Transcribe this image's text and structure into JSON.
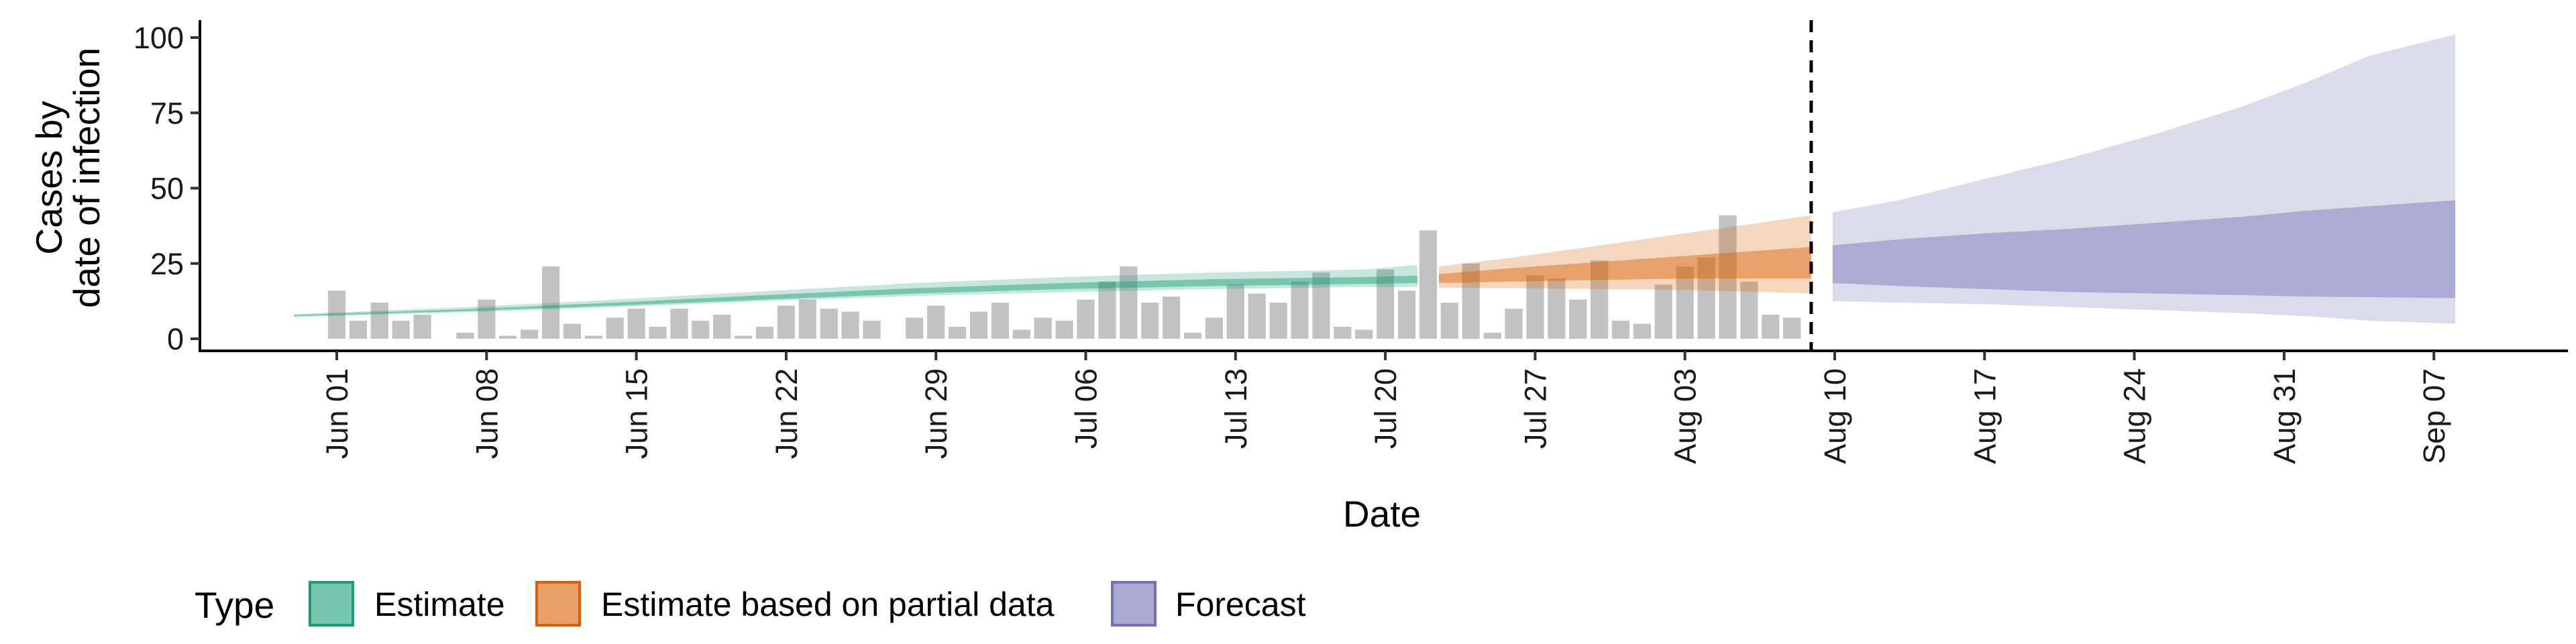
{
  "chart_data": {
    "type": "area",
    "xlabel": "Date",
    "ylabel_lines": [
      "Cases by",
      "date of infection"
    ],
    "ylim": [
      0,
      105
    ],
    "yticks": [
      0,
      25,
      50,
      75,
      100
    ],
    "x_start_day": 0,
    "x_end_day": 104,
    "x_ticks": [
      {
        "day": 1,
        "label": "Jun 01"
      },
      {
        "day": 8,
        "label": "Jun 08"
      },
      {
        "day": 15,
        "label": "Jun 15"
      },
      {
        "day": 22,
        "label": "Jun 22"
      },
      {
        "day": 29,
        "label": "Jun 29"
      },
      {
        "day": 36,
        "label": "Jul 06"
      },
      {
        "day": 43,
        "label": "Jul 13"
      },
      {
        "day": 50,
        "label": "Jul 20"
      },
      {
        "day": 57,
        "label": "Jul 27"
      },
      {
        "day": 64,
        "label": "Aug 03"
      },
      {
        "day": 71,
        "label": "Aug 10"
      },
      {
        "day": 78,
        "label": "Aug 17"
      },
      {
        "day": 85,
        "label": "Aug 24"
      },
      {
        "day": 92,
        "label": "Aug 31"
      },
      {
        "day": 99,
        "label": "Sep 07"
      }
    ],
    "forecast_start_day": 69.9,
    "reported_cases": {
      "start_day": 1,
      "values": [
        16,
        6,
        12,
        6,
        8,
        0,
        2,
        13,
        1,
        3,
        24,
        5,
        1,
        7,
        10,
        4,
        10,
        6,
        8,
        1,
        4,
        11,
        13,
        10,
        9,
        6,
        0,
        7,
        11,
        4,
        9,
        12,
        3,
        7,
        6,
        13,
        19,
        24,
        12,
        14,
        2,
        7,
        18,
        15,
        12,
        19,
        22,
        4,
        3,
        23,
        16,
        36,
        12,
        25,
        2,
        10,
        21,
        20,
        13,
        26,
        6,
        5,
        18,
        24,
        27,
        41,
        19,
        8,
        7
      ]
    },
    "series": [
      {
        "name": "Estimate",
        "color": "#1b9e77",
        "days": [
          -1,
          7,
          14,
          21,
          28,
          35,
          42,
          49,
          51.5
        ],
        "outer_lo": [
          7.2,
          8.8,
          10.5,
          12.5,
          14.2,
          15.5,
          16.5,
          17.2,
          17.2
        ],
        "outer_hi": [
          8.2,
          10.5,
          13.0,
          15.8,
          18.5,
          20.5,
          22.0,
          23.0,
          24.5
        ],
        "inner_lo": [
          7.5,
          9.2,
          11.0,
          13.0,
          15.0,
          16.5,
          17.5,
          18.2,
          18.5
        ],
        "inner_hi": [
          7.9,
          9.8,
          12.0,
          14.5,
          16.8,
          18.5,
          19.8,
          20.5,
          21.0
        ]
      },
      {
        "name": "Estimate based on partial data",
        "color": "#d95f02",
        "days": [
          52.5,
          56,
          60,
          64,
          68,
          69.9
        ],
        "outer_lo": [
          17.0,
          16.8,
          16.5,
          16.2,
          15.5,
          15.0
        ],
        "outer_hi": [
          24.0,
          27.0,
          31.0,
          35.0,
          39.0,
          41.0
        ],
        "inner_lo": [
          18.5,
          19.0,
          19.5,
          20.0,
          20.0,
          20.0
        ],
        "inner_hi": [
          21.5,
          23.5,
          25.5,
          27.5,
          29.5,
          30.5
        ]
      },
      {
        "name": "Forecast",
        "color": "#7570b3",
        "days": [
          70.9,
          74,
          78,
          82,
          86,
          90,
          93,
          96,
          100
        ],
        "outer_lo": [
          12.5,
          12.0,
          11.5,
          10.5,
          9.5,
          8.5,
          7.5,
          6.0,
          5.0
        ],
        "outer_hi": [
          42.0,
          46.0,
          53.0,
          60.0,
          68.0,
          77.0,
          85.0,
          94.0,
          101.0
        ],
        "inner_lo": [
          18.5,
          17.5,
          16.5,
          15.5,
          15.0,
          14.5,
          14.0,
          13.8,
          13.5
        ],
        "inner_hi": [
          31.0,
          33.0,
          35.0,
          36.5,
          38.5,
          40.5,
          42.5,
          44.0,
          46.0
        ]
      }
    ],
    "legend": {
      "title": "Type",
      "position": "bottom",
      "items": [
        "Estimate",
        "Estimate based on partial data",
        "Forecast"
      ]
    }
  }
}
